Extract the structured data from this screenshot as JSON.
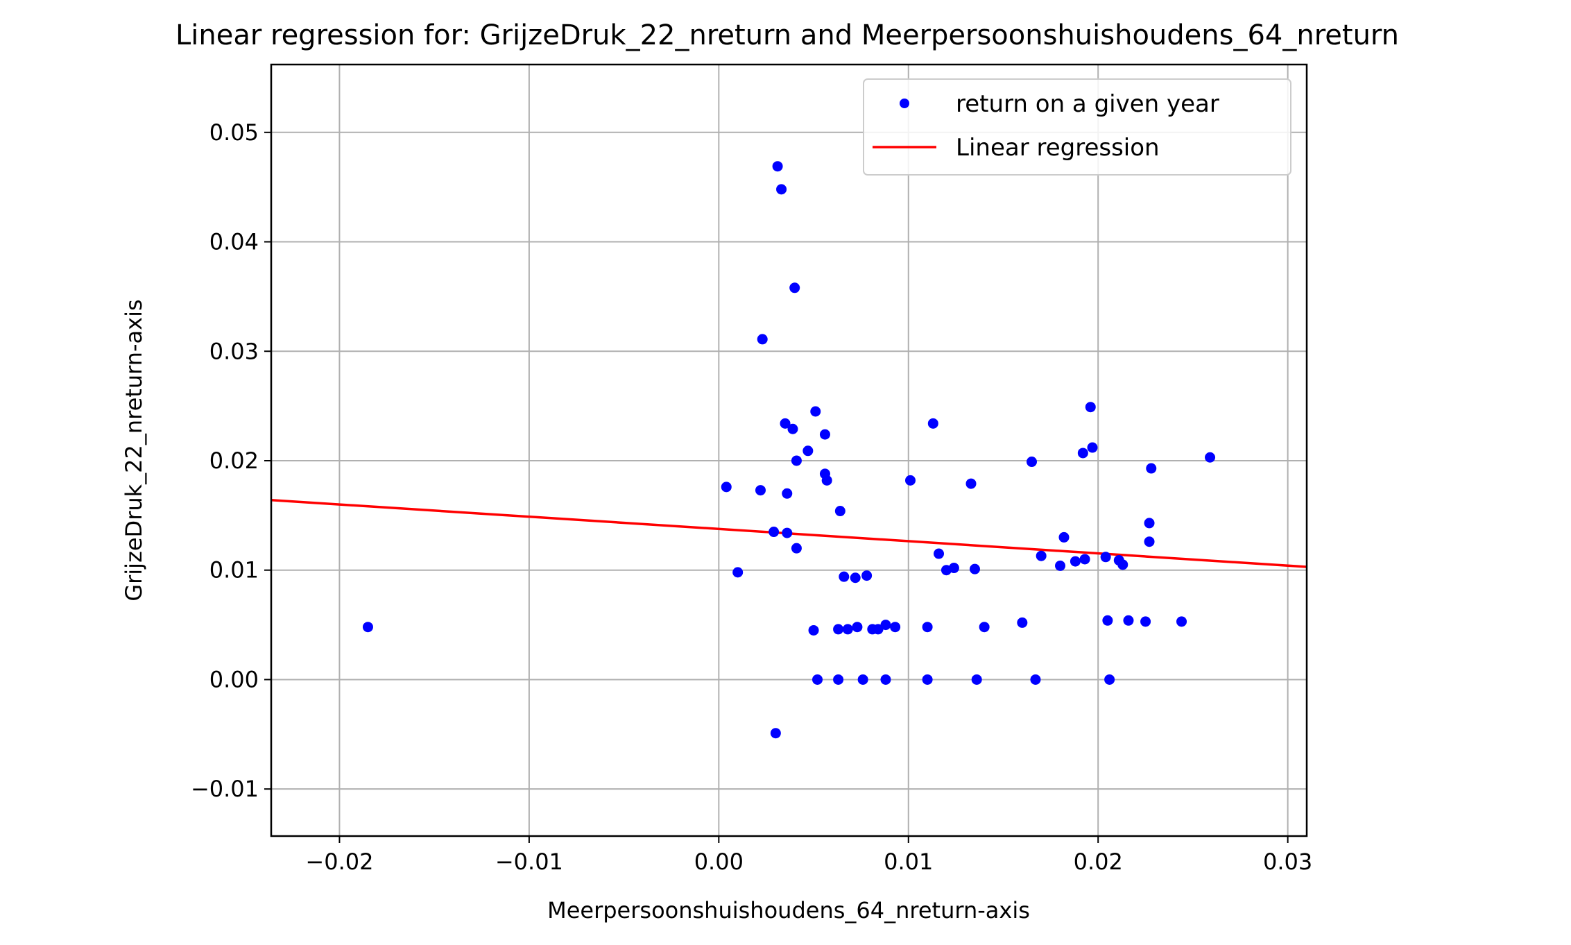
{
  "chart_data": {
    "type": "scatter",
    "title": "Linear regression for: GrijzeDruk_22_nreturn and Meerpersoonshuishoudens_64_nreturn",
    "xlabel": "Meerpersoonshuishoudens_64_nreturn-axis",
    "ylabel": "GrijzeDruk_22_nreturn-axis",
    "xlim": [
      -0.0236,
      0.031
    ],
    "ylim": [
      -0.0143,
      0.0562
    ],
    "x_ticks": [
      -0.02,
      -0.01,
      0.0,
      0.01,
      0.02,
      0.03
    ],
    "x_tick_labels": [
      "−0.02",
      "−0.01",
      "0.00",
      "0.01",
      "0.02",
      "0.03"
    ],
    "y_ticks": [
      -0.01,
      0.0,
      0.01,
      0.02,
      0.03,
      0.04,
      0.05
    ],
    "y_tick_labels": [
      "−0.01",
      "0.00",
      "0.01",
      "0.02",
      "0.03",
      "0.04",
      "0.05"
    ],
    "grid": true,
    "legend_position": "top-right",
    "colors": {
      "points": "#0000ff",
      "line": "#ff0000",
      "grid": "#b0b0b0"
    },
    "series": [
      {
        "name": "return on a given year",
        "kind": "scatter",
        "points": [
          [
            -0.0185,
            0.0048
          ],
          [
            0.0004,
            0.0176
          ],
          [
            0.001,
            0.0098
          ],
          [
            0.0022,
            0.0173
          ],
          [
            0.0023,
            0.0311
          ],
          [
            0.0029,
            0.0135
          ],
          [
            0.003,
            -0.0049
          ],
          [
            0.0031,
            0.0469
          ],
          [
            0.0033,
            0.0448
          ],
          [
            0.0035,
            0.0234
          ],
          [
            0.0036,
            0.017
          ],
          [
            0.0036,
            0.0134
          ],
          [
            0.0039,
            0.0229
          ],
          [
            0.004,
            0.0358
          ],
          [
            0.0041,
            0.02
          ],
          [
            0.0041,
            0.012
          ],
          [
            0.0047,
            0.0209
          ],
          [
            0.005,
            0.0045
          ],
          [
            0.0051,
            0.0245
          ],
          [
            0.0052,
            0.0
          ],
          [
            0.0056,
            0.0188
          ],
          [
            0.0056,
            0.0224
          ],
          [
            0.0057,
            0.0182
          ],
          [
            0.0063,
            0.0
          ],
          [
            0.0063,
            0.0046
          ],
          [
            0.0064,
            0.0154
          ],
          [
            0.0066,
            0.0094
          ],
          [
            0.0068,
            0.0046
          ],
          [
            0.0072,
            0.0093
          ],
          [
            0.0073,
            0.0048
          ],
          [
            0.0076,
            0.0
          ],
          [
            0.0078,
            0.0095
          ],
          [
            0.0081,
            0.0046
          ],
          [
            0.0084,
            0.0046
          ],
          [
            0.0088,
            0.005
          ],
          [
            0.0088,
            0.0
          ],
          [
            0.0093,
            0.0048
          ],
          [
            0.0101,
            0.0182
          ],
          [
            0.011,
            0.0
          ],
          [
            0.011,
            0.0048
          ],
          [
            0.0113,
            0.0234
          ],
          [
            0.0116,
            0.0115
          ],
          [
            0.012,
            0.01
          ],
          [
            0.0124,
            0.0102
          ],
          [
            0.0133,
            0.0179
          ],
          [
            0.0135,
            0.0101
          ],
          [
            0.0136,
            0.0
          ],
          [
            0.014,
            0.0048
          ],
          [
            0.016,
            0.0052
          ],
          [
            0.0165,
            0.0199
          ],
          [
            0.0167,
            0.0
          ],
          [
            0.017,
            0.0113
          ],
          [
            0.018,
            0.0104
          ],
          [
            0.0182,
            0.013
          ],
          [
            0.0188,
            0.0108
          ],
          [
            0.0192,
            0.0207
          ],
          [
            0.0193,
            0.011
          ],
          [
            0.0196,
            0.0249
          ],
          [
            0.0197,
            0.0212
          ],
          [
            0.0204,
            0.0112
          ],
          [
            0.0205,
            0.0054
          ],
          [
            0.0206,
            0.0
          ],
          [
            0.0211,
            0.0109
          ],
          [
            0.0213,
            0.0105
          ],
          [
            0.0216,
            0.0054
          ],
          [
            0.0225,
            0.0053
          ],
          [
            0.0227,
            0.0143
          ],
          [
            0.0227,
            0.0126
          ],
          [
            0.0228,
            0.0193
          ],
          [
            0.0244,
            0.0053
          ],
          [
            0.0259,
            0.0203
          ]
        ]
      },
      {
        "name": "Linear regression",
        "kind": "line",
        "points": [
          [
            -0.0236,
            0.0164
          ],
          [
            0.031,
            0.0103
          ]
        ]
      }
    ]
  }
}
